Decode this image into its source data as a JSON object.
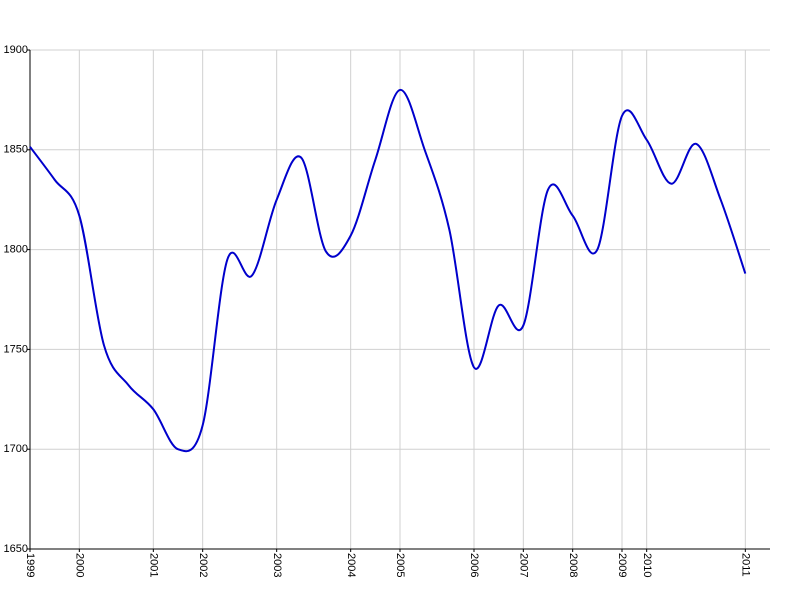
{
  "chart_data": {
    "type": "line",
    "x": [
      0,
      1,
      2,
      3,
      4,
      5,
      6,
      7,
      8,
      9,
      10,
      11,
      12,
      13,
      14,
      15,
      16,
      17,
      18,
      19,
      20,
      21,
      22,
      23,
      24,
      25,
      26,
      27,
      28,
      29
    ],
    "series": [
      {
        "color": "#0000cc",
        "values": [
          1851.5,
          1835,
          1817,
          1752,
          1732,
          1720,
          1700,
          1712,
          1795,
          1787,
          1825,
          1846,
          1799,
          1807,
          1845,
          1880,
          1850,
          1810,
          1741,
          1772,
          1762,
          1830,
          1817,
          1800,
          1867,
          1855,
          1833,
          1853,
          1825,
          1788
        ]
      }
    ],
    "xlim": [
      0,
      30
    ],
    "xticks": [
      {
        "value": 0,
        "label": "1999"
      },
      {
        "value": 2,
        "label": "2000"
      },
      {
        "value": 5,
        "label": "2001"
      },
      {
        "value": 7,
        "label": "2002"
      },
      {
        "value": 10,
        "label": "2003"
      },
      {
        "value": 13,
        "label": "2004"
      },
      {
        "value": 15,
        "label": "2005"
      },
      {
        "value": 18,
        "label": "2006"
      },
      {
        "value": 20,
        "label": "2007"
      },
      {
        "value": 22,
        "label": "2008"
      },
      {
        "value": 24,
        "label": "2009"
      },
      {
        "value": 25,
        "label": "2010"
      },
      {
        "value": 29,
        "label": "2011"
      }
    ],
    "ylim": [
      1650,
      1900
    ],
    "yticks": [
      1650,
      1700,
      1750,
      1800,
      1850,
      1900
    ],
    "grid": true
  }
}
